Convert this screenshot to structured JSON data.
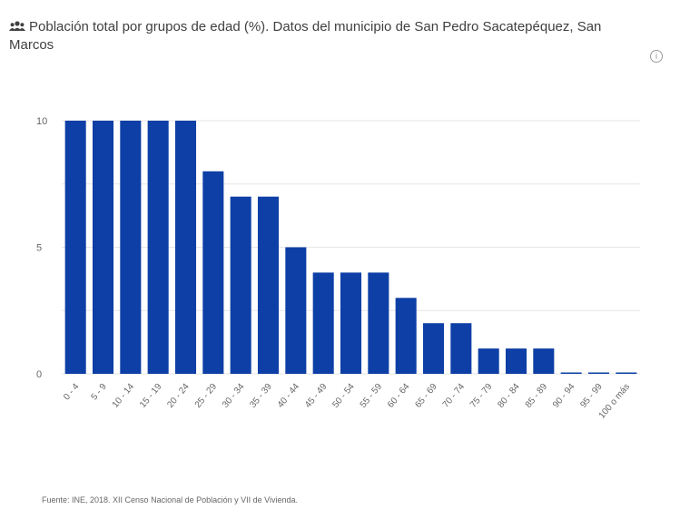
{
  "header": {
    "title": "Población total por grupos de edad (%). Datos del municipio de San Pedro Sacatepéquez, San Marcos",
    "icon": "users-icon",
    "info_icon": "info-icon"
  },
  "footer": {
    "source": "Fuente: INE, 2018. XII Censo Nacional de Población y VII de Vivienda."
  },
  "colors": {
    "bar": "#0d3fa6",
    "grid": "#e6e6e6",
    "axis_text": "#666666"
  },
  "chart_data": {
    "type": "bar",
    "categories": [
      "0 - 4",
      "5 - 9",
      "10 - 14",
      "15 - 19",
      "20 - 24",
      "25 - 29",
      "30 - 34",
      "35 - 39",
      "40 - 44",
      "45 - 49",
      "50 - 54",
      "55 - 59",
      "60 - 64",
      "65 - 69",
      "70 - 74",
      "75 - 79",
      "80 - 84",
      "85 - 89",
      "90 - 94",
      "95 - 99",
      "100 o más"
    ],
    "values": [
      10,
      10,
      10,
      10,
      10,
      8,
      7,
      7,
      5,
      4,
      4,
      4,
      3,
      2,
      2,
      1,
      1,
      1,
      0,
      0,
      0
    ],
    "yticks": [
      0,
      5,
      10
    ],
    "ylim": [
      0,
      10
    ],
    "grid": true
  }
}
